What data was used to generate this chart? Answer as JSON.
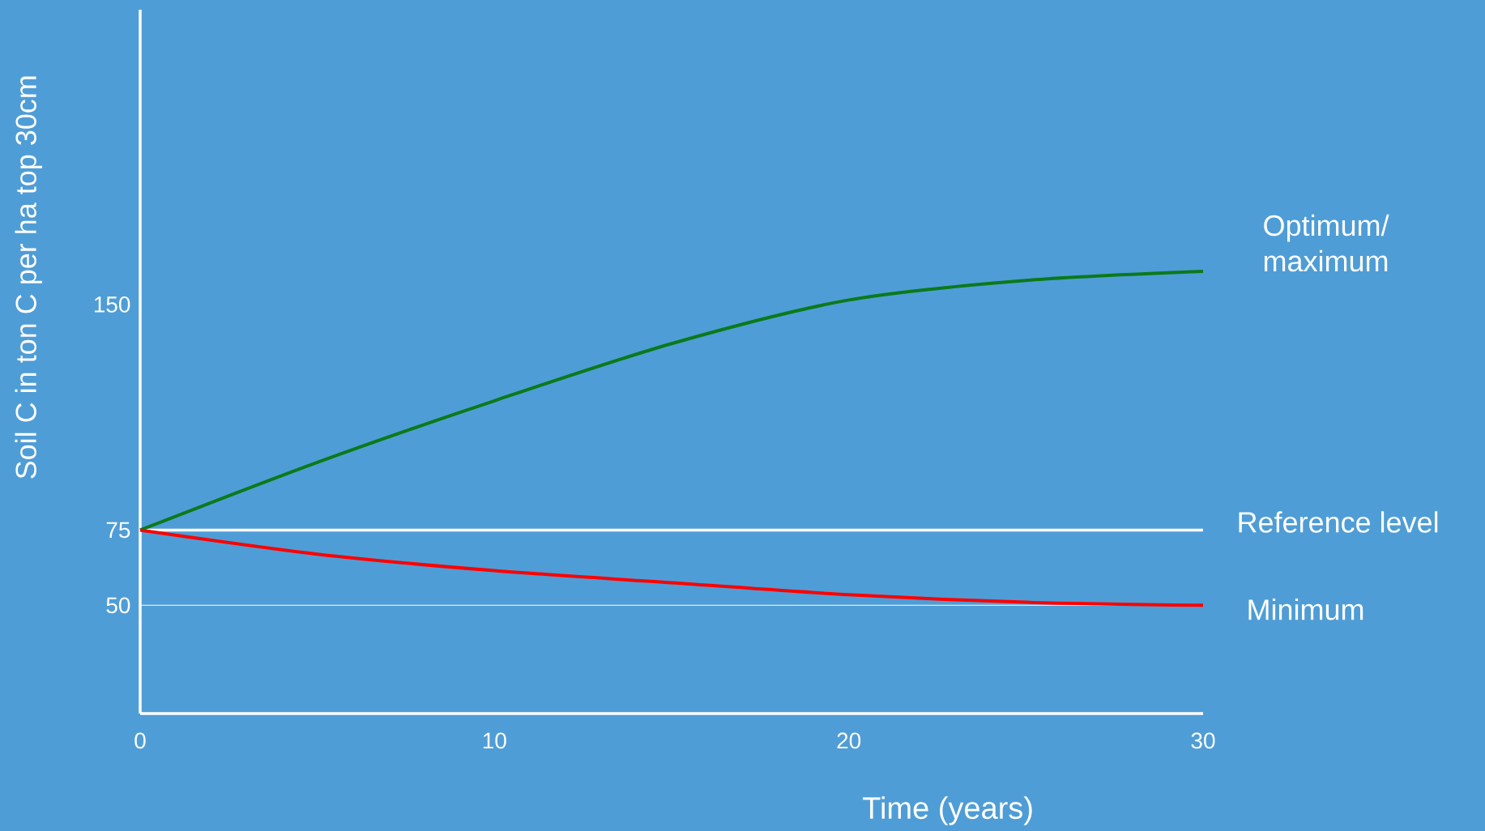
{
  "chart_data": {
    "type": "line",
    "xlabel": "Time (years)",
    "ylabel": "Soil C in ton C per ha top 30cm",
    "x": [
      0,
      5,
      10,
      15,
      20,
      25,
      30
    ],
    "series": [
      {
        "name": "Optimum/ maximum",
        "color": "#0a7a1a",
        "values": [
          75,
          97.5,
          118,
          137,
          151.5,
          158,
          161
        ]
      },
      {
        "name": "Minimum",
        "color": "#ff0000",
        "values": [
          75,
          67,
          61.5,
          57.5,
          53.5,
          51,
          50
        ]
      }
    ],
    "xlim": [
      0,
      30
    ],
    "ylim": [
      14,
      248
    ],
    "xticks": [
      0,
      10,
      20,
      30
    ],
    "yticks": [
      50,
      75,
      150
    ],
    "ref_lines": [
      {
        "axis": "y",
        "value": 75,
        "label": "Reference level",
        "color": "#ffffff"
      },
      {
        "axis": "y",
        "value": 50,
        "color": "#ffffff"
      }
    ]
  }
}
